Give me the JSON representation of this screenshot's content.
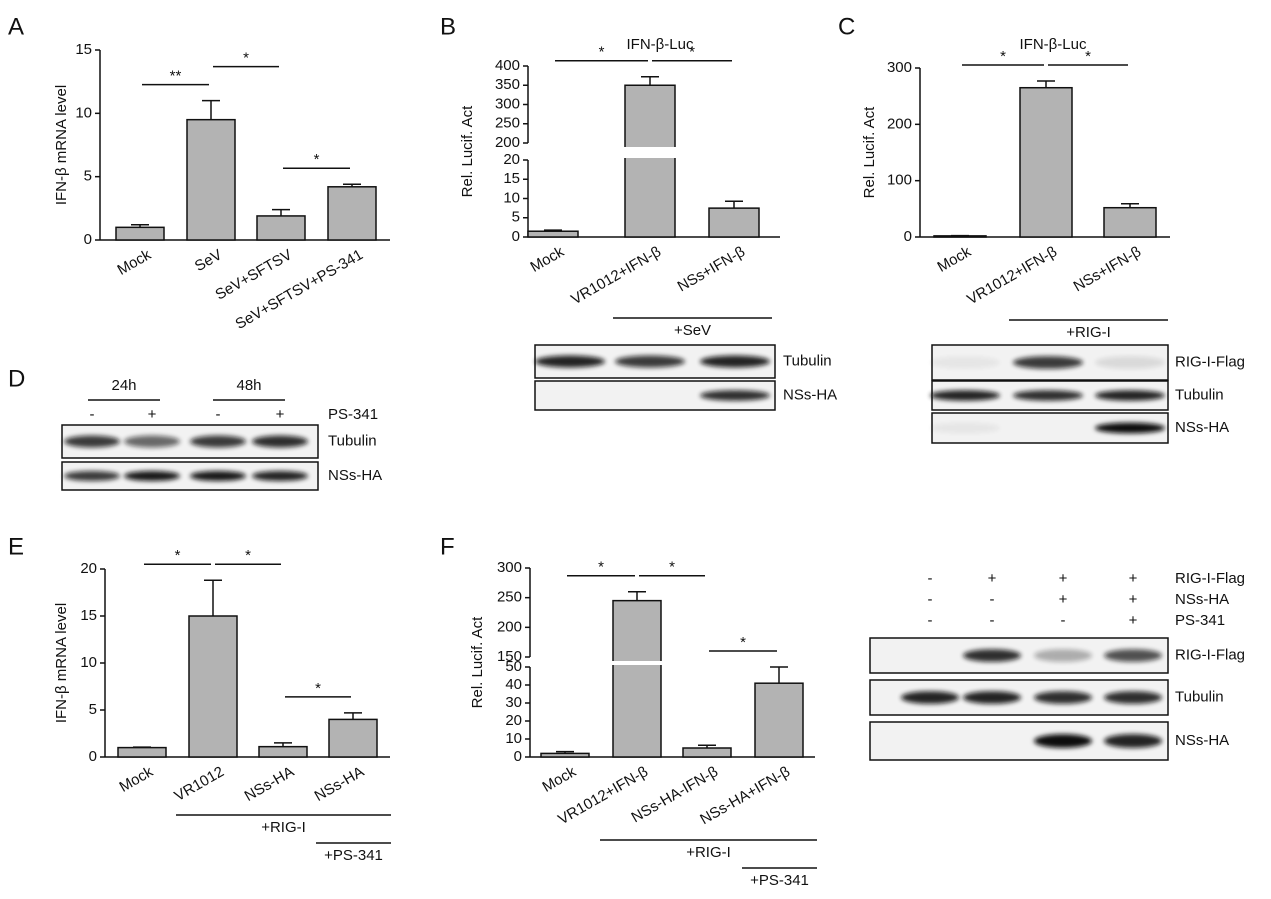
{
  "panel_labels": [
    "A",
    "B",
    "C",
    "D",
    "E",
    "F"
  ],
  "chart_data": [
    {
      "type": "bar",
      "ylabel": "IFN-β mRNA level",
      "categories": [
        "Mock",
        "SeV",
        "SeV+SFTSV",
        "SeV+SFTSV+PS-341"
      ],
      "values": [
        1.0,
        9.5,
        1.9,
        4.2
      ],
      "errors": [
        0.2,
        1.5,
        0.5,
        0.2
      ],
      "color": "#b3b3b3",
      "ylim": [
        0,
        15
      ],
      "yticks": [
        0,
        5,
        10,
        15
      ],
      "significance": [
        {
          "label": "**",
          "pair": [
            0,
            1
          ]
        },
        {
          "label": "*",
          "pair": [
            1,
            2
          ]
        },
        {
          "label": "*",
          "pair": [
            2,
            3
          ]
        }
      ],
      "groups": []
    },
    {
      "type": "bar",
      "title": "IFN-β-Luc",
      "ylabel": "Rel. Lucif. Act",
      "categories": [
        "Mock",
        "VR1012+IFN-β",
        "NSs+IFN-β"
      ],
      "values": [
        1.5,
        350,
        7.5
      ],
      "errors": [
        0.3,
        22,
        1.8
      ],
      "color": "#b3b3b3",
      "ylim": [
        0,
        400
      ],
      "ybreak": [
        20,
        200
      ],
      "yticks": [
        0,
        5,
        10,
        15,
        20,
        200,
        250,
        300,
        350,
        400
      ],
      "significance": [
        {
          "label": "*",
          "pair": [
            0,
            1
          ]
        },
        {
          "label": "*",
          "pair": [
            1,
            2
          ]
        }
      ],
      "groups": [
        {
          "label": "+SeV",
          "span": [
            1,
            2
          ]
        }
      ]
    },
    {
      "type": "bar",
      "title": "IFN-β-Luc",
      "ylabel": "Rel. Lucif. Act",
      "categories": [
        "Mock",
        "VR1012+IFN-β",
        "NSs+IFN-β"
      ],
      "values": [
        2,
        265,
        52
      ],
      "errors": [
        0.5,
        12,
        7
      ],
      "color": "#b3b3b3",
      "ylim": [
        0,
        300
      ],
      "yticks": [
        0,
        100,
        200,
        300
      ],
      "significance": [
        {
          "label": "*",
          "pair": [
            0,
            1
          ]
        },
        {
          "label": "*",
          "pair": [
            1,
            2
          ]
        }
      ],
      "groups": [
        {
          "label": "+RIG-I",
          "span": [
            1,
            2
          ]
        }
      ]
    },
    {
      "type": "bar",
      "ylabel": "IFN-β mRNA level",
      "categories": [
        "Mock",
        "VR1012",
        "NSs-HA",
        "NSs-HA"
      ],
      "values": [
        1.0,
        15,
        1.1,
        4.0
      ],
      "errors": [
        0.05,
        3.8,
        0.4,
        0.7
      ],
      "color": "#b3b3b3",
      "ylim": [
        0,
        20
      ],
      "yticks": [
        0,
        5,
        10,
        15,
        20
      ],
      "significance": [
        {
          "label": "*",
          "pair": [
            0,
            1
          ]
        },
        {
          "label": "*",
          "pair": [
            1,
            2
          ]
        },
        {
          "label": "*",
          "pair": [
            2,
            3
          ]
        }
      ],
      "groups": [
        {
          "label": "+RIG-I",
          "span": [
            1,
            3
          ]
        },
        {
          "label": "+PS-341",
          "span": [
            3,
            3
          ]
        }
      ]
    },
    {
      "type": "bar",
      "ylabel": "Rel. Lucif. Act",
      "categories": [
        "Mock",
        "VR1012+IFN-β",
        "NSs-HA-IFN-β",
        "NSs-HA+IFN-β"
      ],
      "values": [
        2,
        245,
        5,
        41
      ],
      "errors": [
        1,
        15,
        1.5,
        9
      ],
      "color": "#b3b3b3",
      "ylim": [
        0,
        300
      ],
      "ybreak": [
        50,
        150
      ],
      "yticks": [
        0,
        10,
        20,
        30,
        40,
        50,
        150,
        200,
        250,
        300
      ],
      "significance": [
        {
          "label": "*",
          "pair": [
            0,
            1
          ]
        },
        {
          "label": "*",
          "pair": [
            1,
            2
          ]
        },
        {
          "label": "*",
          "pair": [
            2,
            3
          ]
        }
      ],
      "groups": [
        {
          "label": "+RIG-I",
          "span": [
            1,
            3
          ]
        },
        {
          "label": "+PS-341",
          "span": [
            3,
            3
          ]
        }
      ]
    }
  ],
  "blots": [
    {
      "rows": [
        "Tubulin",
        "NSs-HA"
      ],
      "header_groups": [],
      "conditions": []
    },
    {
      "rows": [
        "RIG-I-Flag",
        "Tubulin",
        "NSs-HA"
      ],
      "header_groups": [],
      "conditions": []
    },
    {
      "rows": [
        "Tubulin",
        "NSs-HA"
      ],
      "header_groups": [
        "24h",
        "48h"
      ],
      "conditions": [
        {
          "label": "PS-341",
          "signs": [
            "-",
            "+",
            "-",
            "+"
          ]
        }
      ]
    },
    {
      "rows": [
        "RIG-I-Flag",
        "Tubulin",
        "NSs-HA"
      ],
      "header_groups": [],
      "conditions": [
        {
          "label": "RIG-I-Flag",
          "signs": [
            "-",
            "+",
            "+",
            "+"
          ]
        },
        {
          "label": "NSs-HA",
          "signs": [
            "-",
            "-",
            "+",
            "+"
          ]
        },
        {
          "label": "PS-341",
          "signs": [
            "-",
            "-",
            "-",
            "+"
          ]
        }
      ]
    }
  ]
}
